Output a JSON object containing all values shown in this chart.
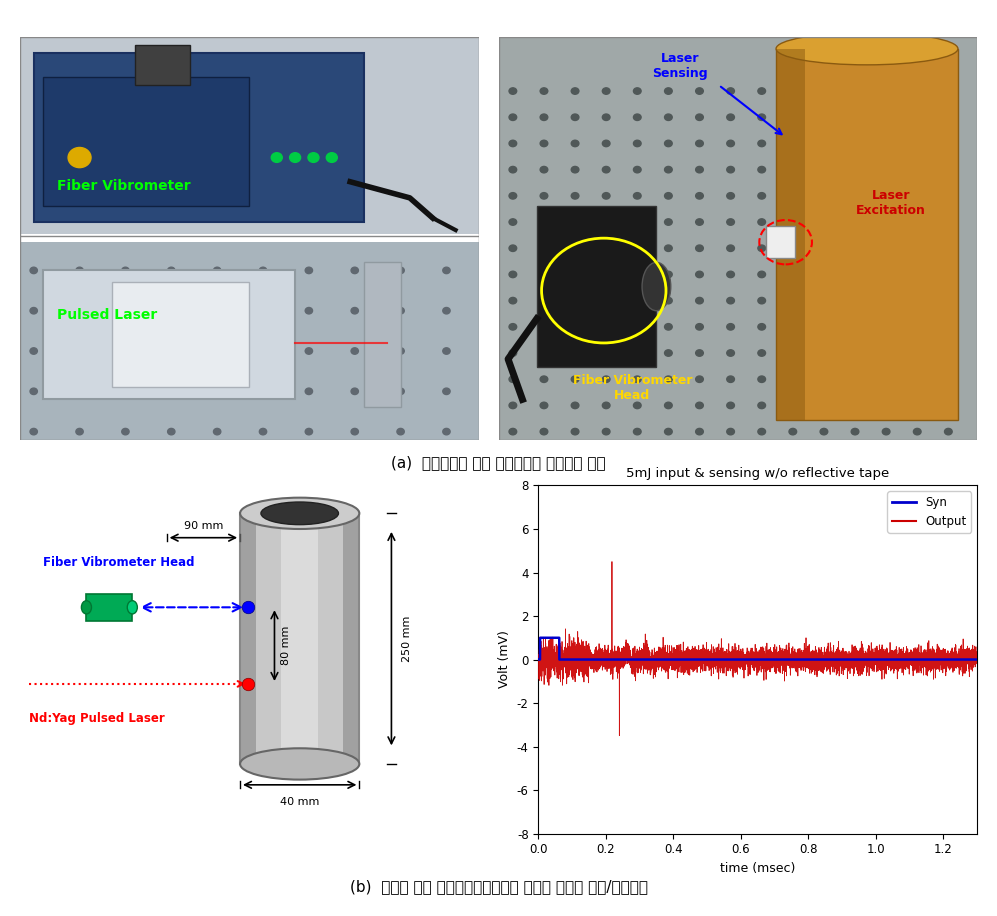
{
  "title_a": "(a)  실험장비와 금속 파이프라인 구조물의 구성",
  "title_b": "(b)  광섬유 기반 레이저초음파기법을 활용한 초음파 생성/측정결과",
  "plot_title": "5mJ input & sensing w/o reflective tape",
  "xlabel": "time (msec)",
  "ylabel": "Volt (mV)",
  "ylim": [
    -8,
    8
  ],
  "xlim": [
    0,
    1.3
  ],
  "yticks": [
    -8,
    -6,
    -4,
    -2,
    0,
    2,
    4,
    6,
    8
  ],
  "xticks": [
    0,
    0.2,
    0.4,
    0.6,
    0.8,
    1.0,
    1.2
  ],
  "legend_syn": "Syn",
  "legend_output": "Output",
  "syn_color": "#0000CC",
  "output_color": "#CC0000",
  "fiber_head_label": "Fiber Vibrometer Head",
  "fiber_head_color": "#0000FF",
  "laser_label": "Nd:Yag Pulsed Laser",
  "laser_color": "#FF0000",
  "dim_90mm": "90 mm",
  "dim_250mm": "250 mm",
  "dim_80mm": "80 mm",
  "dim_40mm": "40 mm",
  "bg_color": "#FFFFFF",
  "photo_left_top_color": "#3a5070",
  "photo_left_bot_color": "#8090a0",
  "photo_right_color": "#909090"
}
